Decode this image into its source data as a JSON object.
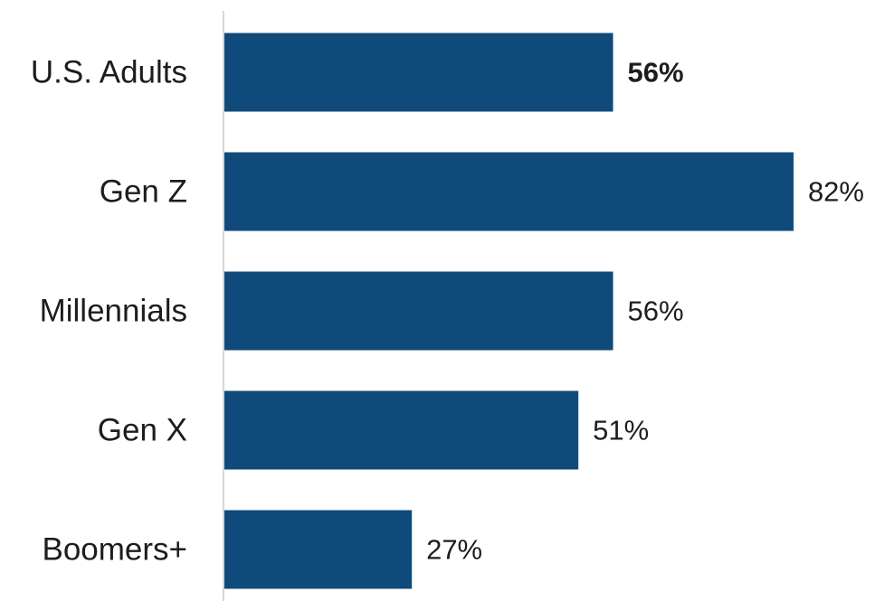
{
  "chart_data": {
    "type": "bar",
    "orientation": "horizontal",
    "categories": [
      "U.S. Adults",
      "Gen Z",
      "Millennials",
      "Gen X",
      "Boomers+"
    ],
    "values": [
      56,
      82,
      56,
      51,
      27
    ],
    "value_labels": [
      "56%",
      "82%",
      "56%",
      "51%",
      "27%"
    ],
    "highlight_index": 0,
    "xlim": [
      0,
      100
    ],
    "grid": false,
    "legend": "none",
    "title": "",
    "xlabel": "",
    "ylabel": ""
  },
  "colors": {
    "bar": "#0f4a7a",
    "highlight_text": "#1a4e80",
    "text": "#1d1d1d",
    "axis": "#d6d6d6"
  }
}
